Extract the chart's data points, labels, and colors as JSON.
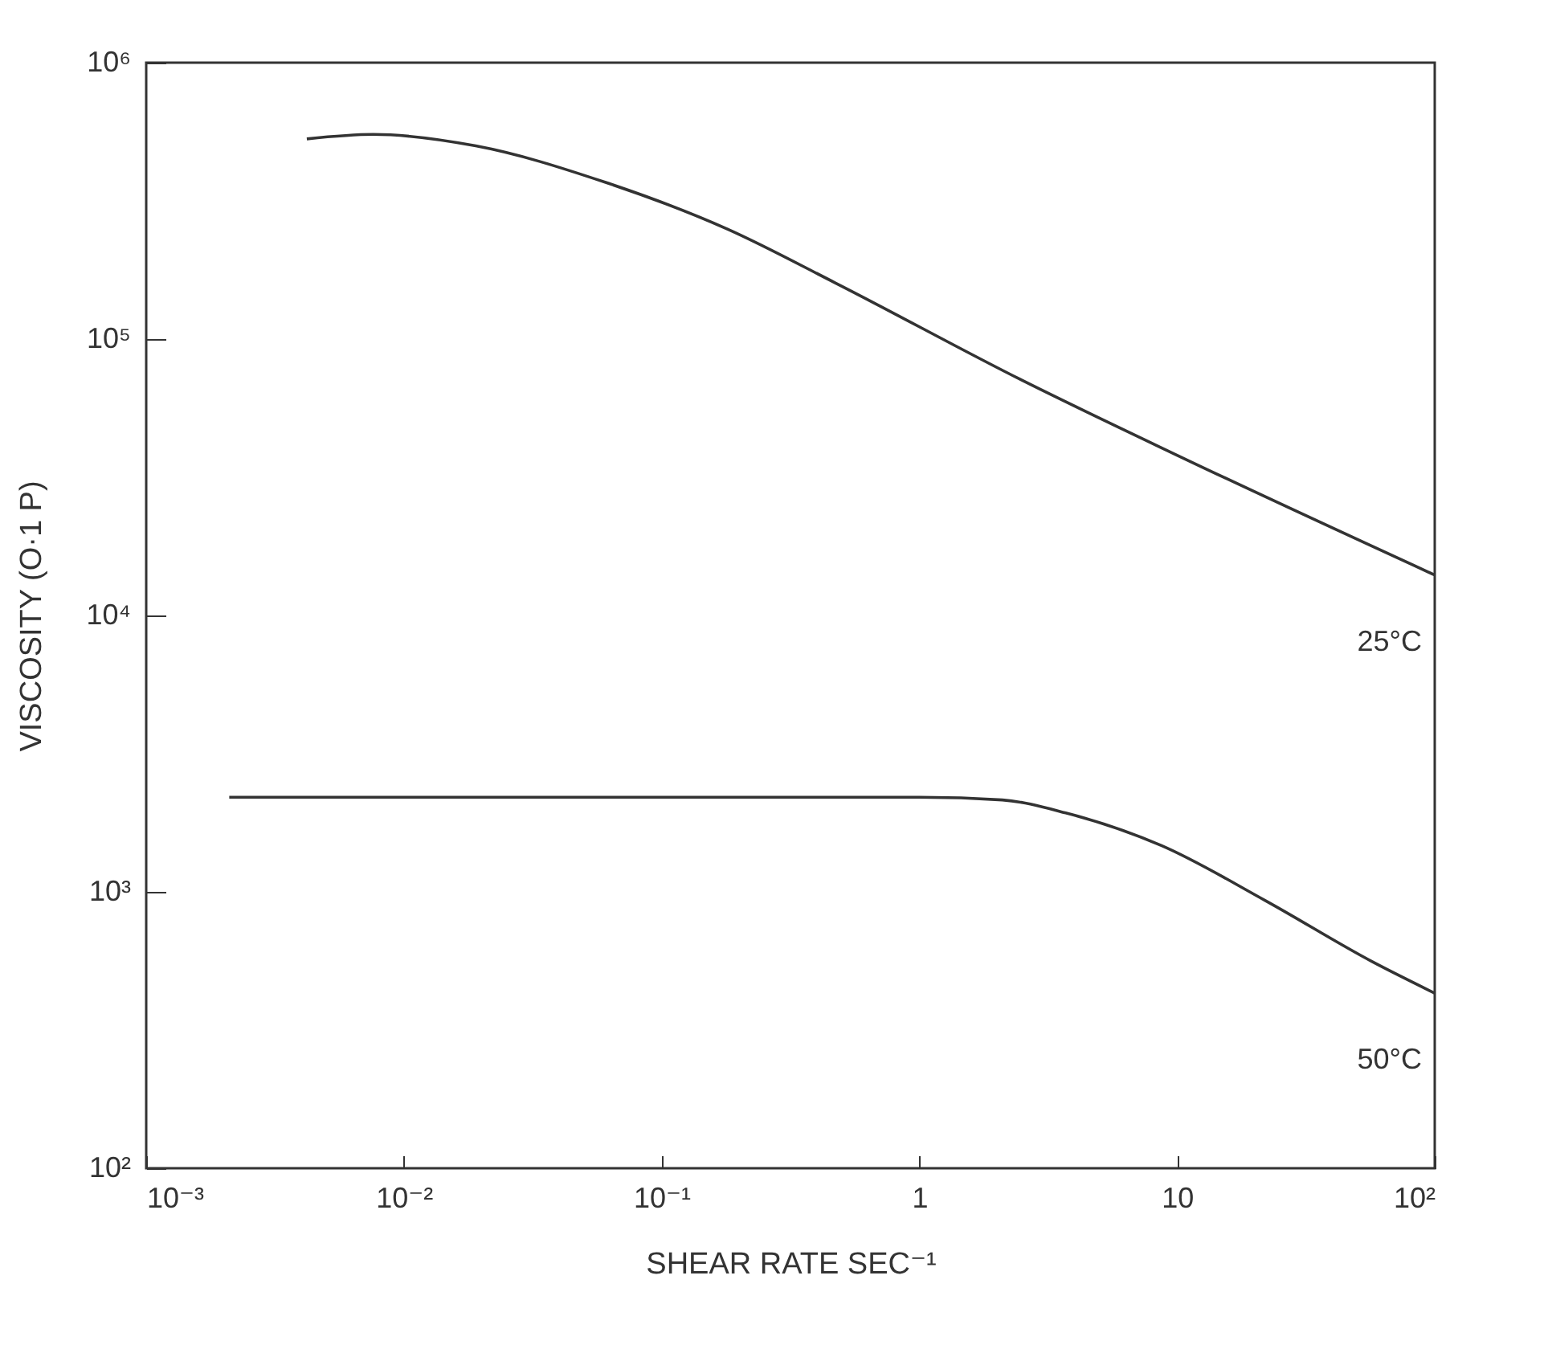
{
  "chart_data": {
    "type": "line",
    "xlabel": "SHEAR RATE SEC⁻¹",
    "ylabel": "VISCOSITY (O·1 P)",
    "log": "xy",
    "grid": false,
    "line_style": "solid",
    "marker": "none",
    "xlim": [
      0.001,
      100
    ],
    "ylim": [
      100,
      1000000
    ],
    "xticks": [
      {
        "value": 0.001,
        "label": "10⁻³"
      },
      {
        "value": 0.01,
        "label": "10⁻²"
      },
      {
        "value": 0.1,
        "label": "10⁻¹"
      },
      1,
      10,
      {
        "value": 100,
        "label": "10²"
      }
    ],
    "yticks": [
      {
        "value": 100,
        "label": "10²"
      },
      {
        "value": 1000,
        "label": "10³"
      },
      {
        "value": 10000,
        "label": "10⁴"
      },
      {
        "value": 100000,
        "label": "10⁵"
      },
      {
        "value": 1000000,
        "label": "10⁶"
      }
    ],
    "series": [
      {
        "name": "25°C",
        "color": "#333333",
        "x": [
          0.0042,
          0.0076,
          0.019,
          0.06,
          0.18,
          0.47,
          2.5,
          10,
          100
        ],
        "values": [
          530000,
          550000,
          500000,
          370000,
          250000,
          160000,
          71000,
          38000,
          14000
        ]
      },
      {
        "name": "50°C",
        "color": "#333333",
        "x": [
          0.0021,
          0.1,
          1,
          2.1,
          3.7,
          8.7,
          22,
          57,
          100
        ],
        "values": [
          2200,
          2200,
          2200,
          2150,
          1930,
          1470,
          930,
          560,
          430
        ]
      }
    ]
  }
}
